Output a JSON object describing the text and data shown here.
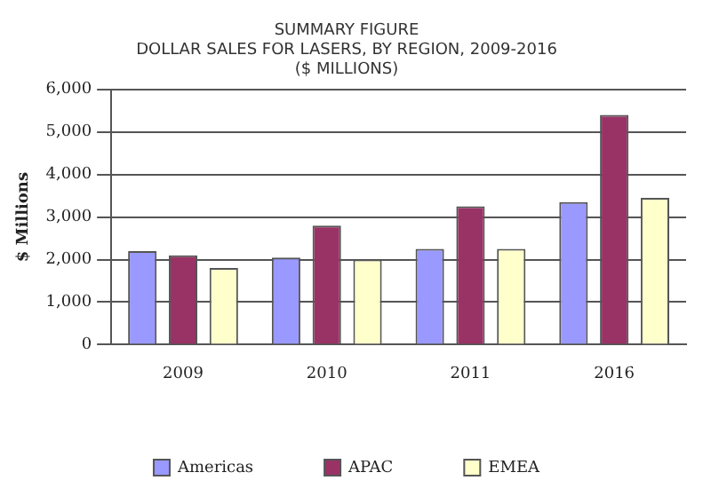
{
  "chart_data": {
    "type": "bar",
    "title": [
      "SUMMARY FIGURE",
      "DOLLAR SALES FOR LASERS, BY REGION, 2009-2016",
      "($ MILLIONS)"
    ],
    "ylabel": "$ Millions",
    "categories": [
      "2009",
      "2010",
      "2011",
      "2016"
    ],
    "series": [
      {
        "name": "Americas",
        "color": "#9999ff",
        "values": [
          2200,
          2050,
          2250,
          3350
        ]
      },
      {
        "name": "APAC",
        "color": "#993366",
        "values": [
          2100,
          2800,
          3250,
          5400
        ]
      },
      {
        "name": "EMEA",
        "color": "#ffffcc",
        "values": [
          1800,
          2000,
          2250,
          3450
        ]
      }
    ],
    "ylim": [
      0,
      6000
    ],
    "yticks": [
      0,
      {
        "value": 1000,
        "label": "1,000"
      },
      {
        "value": 2000,
        "label": "2,000"
      },
      {
        "value": 3000,
        "label": "3,000"
      },
      {
        "value": 4000,
        "label": "4,000"
      },
      {
        "value": 5000,
        "label": "5,000"
      },
      {
        "value": 6000,
        "label": "6,000"
      }
    ],
    "grid": "y",
    "legend": "bottom"
  }
}
